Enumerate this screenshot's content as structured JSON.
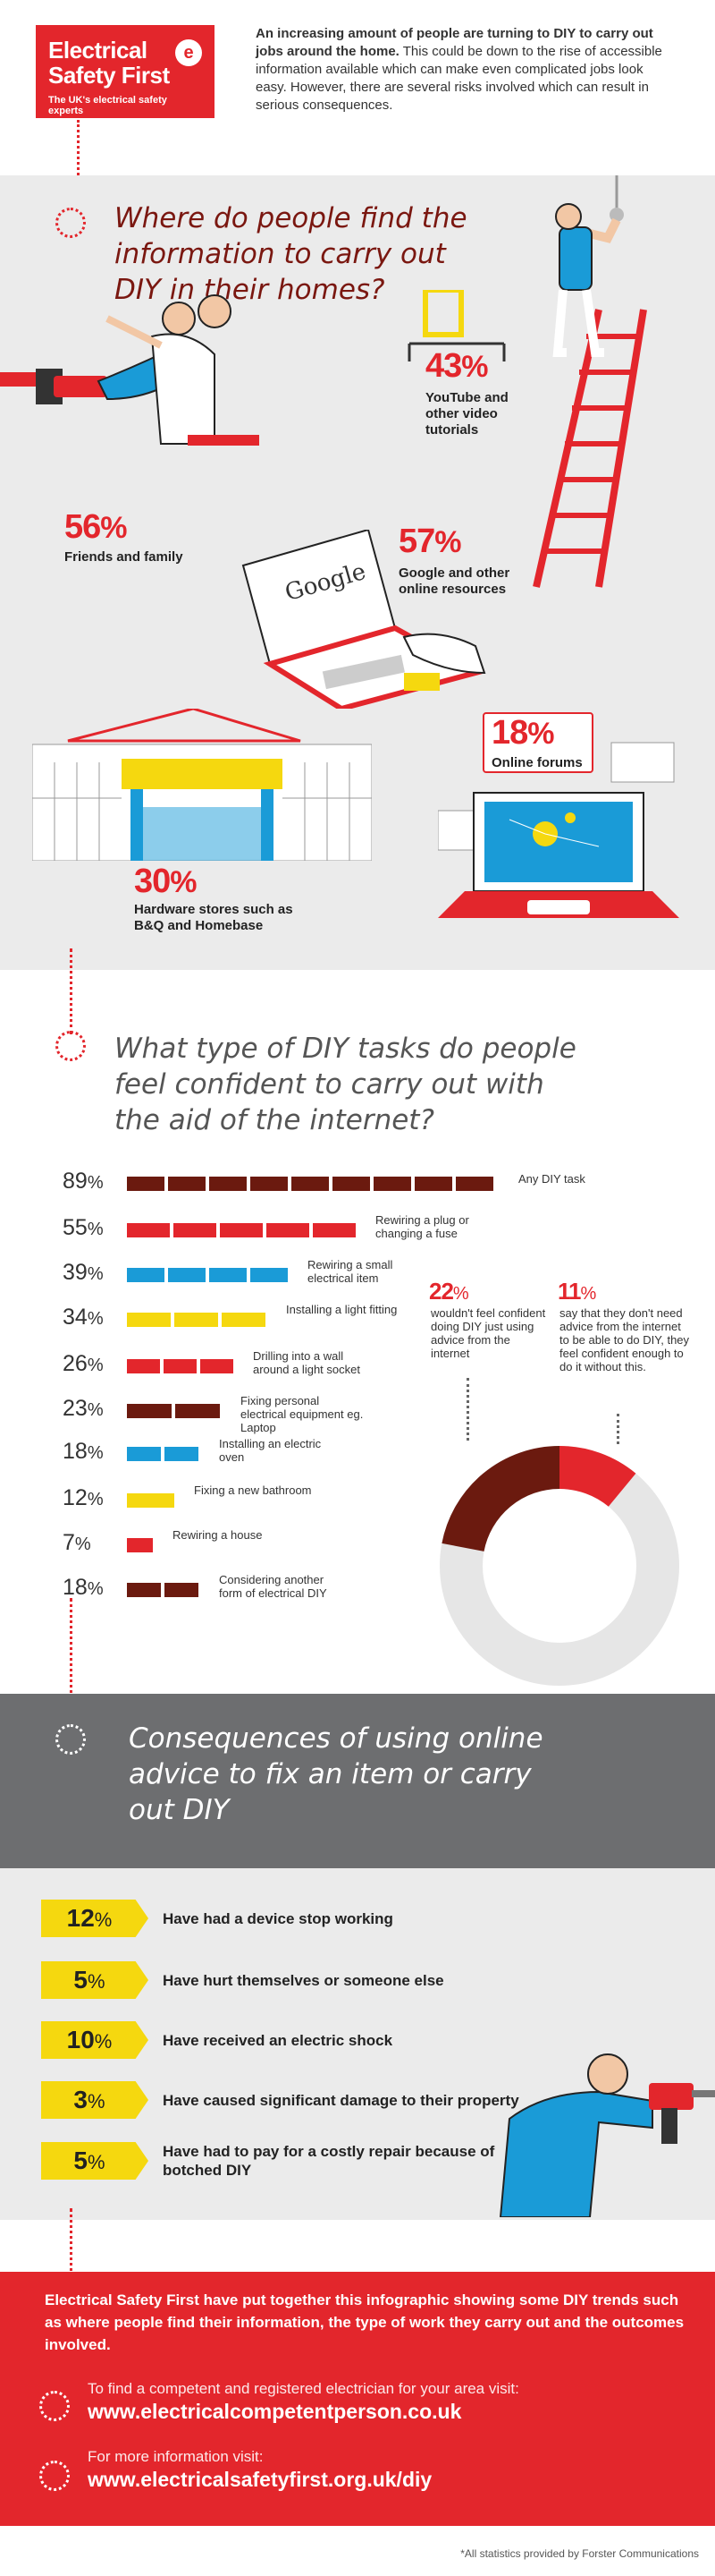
{
  "brand": {
    "line1": "Electrical",
    "line2": "Safety First",
    "badge": "e",
    "tagline": "The UK's electrical safety experts",
    "color": "#e3262c"
  },
  "intro": {
    "bold": "An increasing amount of people are turning to DIY to carry out jobs around the home.",
    "rest": " This could be down to the rise of accessible information available which can make even complicated jobs look easy. However, there are several risks involved which can result in serious consequences."
  },
  "section1": {
    "heading": "Where do people find the information to carry out DIY in their homes?",
    "sources": [
      {
        "pct": "43",
        "unit": "%",
        "caption": "YouTube and other video tutorials"
      },
      {
        "pct": "56",
        "unit": "%",
        "caption": "Friends and family"
      },
      {
        "pct": "57",
        "unit": "%",
        "caption": "Google and other online resources"
      },
      {
        "pct": "18",
        "unit": "%",
        "caption": "Online forums"
      },
      {
        "pct": "30",
        "unit": "%",
        "caption": "Hardware stores such as B&Q and Homebase"
      }
    ],
    "laptop_text": "Google"
  },
  "section2": {
    "heading": "What type of DIY tasks do people feel confident to carry out with the aid of the internet?",
    "unit": "%",
    "tasks": [
      {
        "value": 89,
        "label": "Any DIY task",
        "color": "#6b1a0f"
      },
      {
        "value": 55,
        "label": "Rewiring a plug or changing a fuse",
        "color": "#e3262c"
      },
      {
        "value": 39,
        "label": "Rewiring a small electrical item",
        "color": "#1a9bd7"
      },
      {
        "value": 34,
        "label": "Installing a light fitting",
        "color": "#f5d80f"
      },
      {
        "value": 26,
        "label": "Drilling into a wall around a light socket",
        "color": "#e3262c"
      },
      {
        "value": 23,
        "label": "Fixing personal electrical equipment eg. Laptop",
        "color": "#6b1a0f"
      },
      {
        "value": 18,
        "label": "Installing an electric oven",
        "color": "#1a9bd7"
      },
      {
        "value": 12,
        "label": "Fixing a new bathroom",
        "color": "#f5d80f"
      },
      {
        "value": 7,
        "label": "Rewiring a house",
        "color": "#e3262c"
      },
      {
        "value": 18,
        "label": "Considering another form of electrical DIY",
        "color": "#6b1a0f"
      }
    ],
    "donut": [
      {
        "pct": "22",
        "unit": "%",
        "caption": "wouldn't feel confident doing DIY just using advice from the internet",
        "value": 22,
        "color": "#6b1a0f"
      },
      {
        "pct": "11",
        "unit": "%",
        "caption": "say that they don't need advice from the internet to be able to do DIY, they feel confident enough to do it without this.",
        "value": 11,
        "color": "#e3262c"
      }
    ]
  },
  "section3": {
    "heading": "Consequences of using online advice to fix an item or carry out DIY",
    "items": [
      {
        "pct": "12",
        "unit": "%",
        "text": "Have had a device stop working"
      },
      {
        "pct": "5",
        "unit": "%",
        "text": "Have hurt themselves or someone else"
      },
      {
        "pct": "10",
        "unit": "%",
        "text": "Have received an electric shock"
      },
      {
        "pct": "3",
        "unit": "%",
        "text": "Have caused significant damage to their property"
      },
      {
        "pct": "5",
        "unit": "%",
        "text": "Have had to pay for a costly repair because of botched DIY"
      }
    ]
  },
  "footer": {
    "text": "Electrical Safety First have put together this infographic showing some DIY trends such as where people find their information, the type of work they carry out and the outcomes involved.",
    "visit1_label": "To find a competent and registered electrician for your area visit:",
    "visit1_url": "www.electricalcompetentperson.co.uk",
    "visit2_label": "For more information visit:",
    "visit2_url": "www.electricalsafetyfirst.org.uk/diy",
    "note": "*All statistics provided by Forster Communications"
  }
}
